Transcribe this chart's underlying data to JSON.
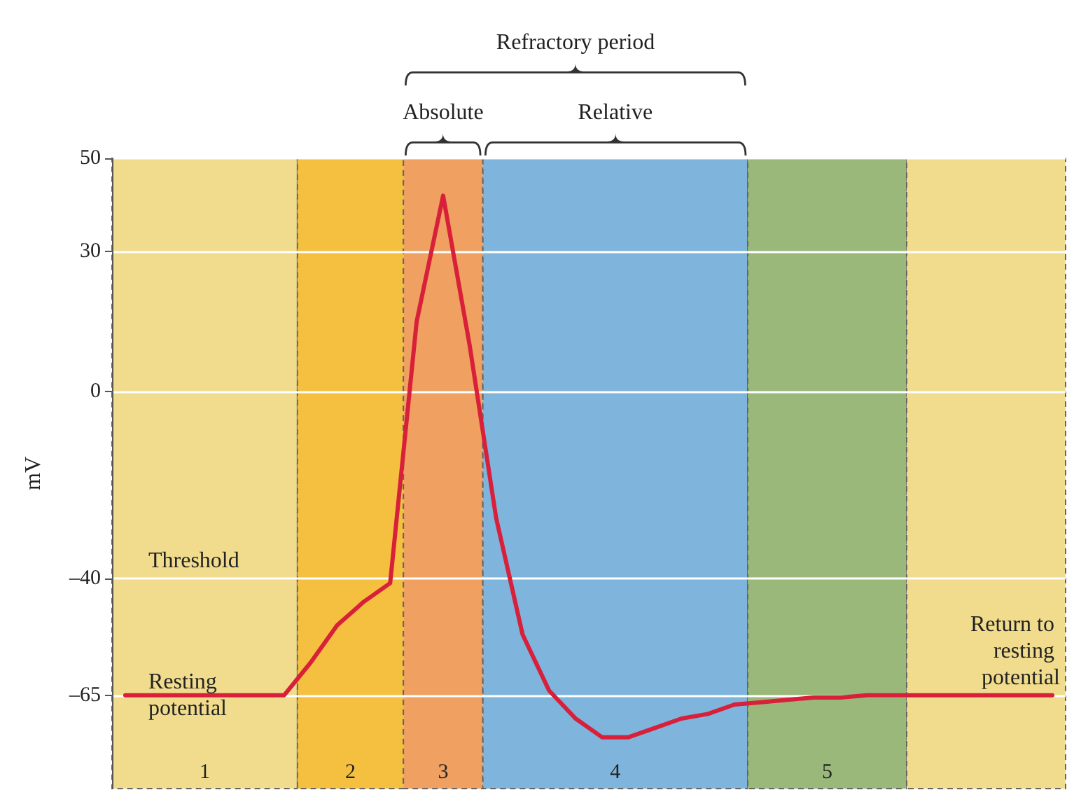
{
  "chart_data": {
    "type": "line",
    "ylabel": "mV",
    "categories": [
      null,
      null,
      null,
      null,
      null,
      null,
      null,
      null,
      null,
      null,
      null,
      null,
      null,
      null,
      null,
      null,
      null,
      null,
      null,
      null,
      null,
      null,
      null,
      null,
      null,
      null,
      null,
      null,
      null,
      null,
      null,
      null,
      null,
      null,
      null,
      null
    ],
    "series": [
      {
        "color": "#d8203a",
        "values": [
          -65,
          -65,
          -65,
          -65,
          -65,
          -65,
          -65,
          -58,
          -50,
          -45,
          -41,
          15,
          42,
          10,
          -27,
          -52,
          -64,
          -70,
          -74,
          -74,
          -72,
          -70,
          -69,
          -67,
          -66.5,
          -66,
          -65.5,
          -65.5,
          -65,
          -65,
          -65,
          -65,
          -65,
          -65,
          -65,
          -65
        ]
      }
    ],
    "ylim": [
      -85,
      50
    ],
    "yticks": [
      50,
      30,
      0,
      {
        "value": -40,
        "label": "–40"
      },
      {
        "value": -65,
        "label": "–65"
      }
    ],
    "tick_labels": "y",
    "grid": "y",
    "marker": "none",
    "line_style": "solid",
    "annotations": [
      "Absolute",
      "Relative",
      "Refractory period",
      "1",
      "2",
      "3",
      "4",
      "5",
      "Threshold",
      "Resting potential",
      "Return to resting potential"
    ]
  }
}
